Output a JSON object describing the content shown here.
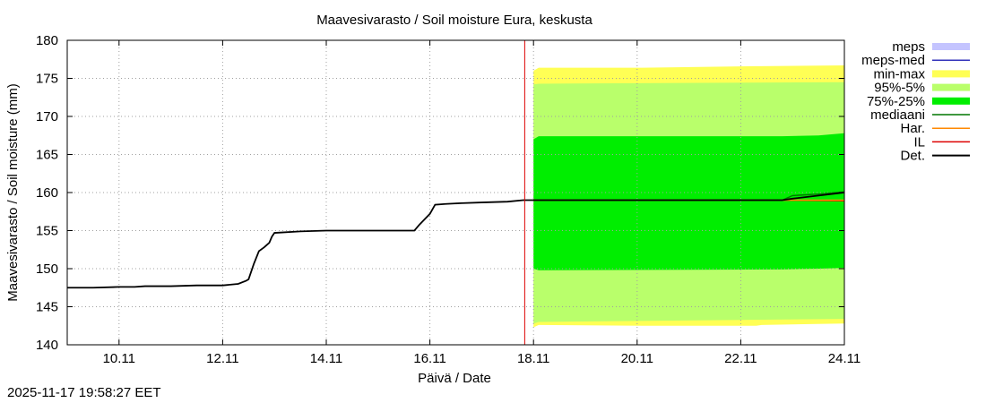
{
  "chart_data": {
    "type": "area",
    "title": "Maavesivarasto / Soil moisture   Eura, keskusta",
    "xlabel": "Päivä / Date",
    "ylabel": "Maavesivarasto / Soil moisture (mm)",
    "ylim": [
      140,
      180
    ],
    "xlim_days": [
      9.0,
      24.0
    ],
    "y_ticks": [
      140,
      145,
      150,
      155,
      160,
      165,
      170,
      175,
      180
    ],
    "x_ticks": [
      {
        "day": 10,
        "label": "10.11"
      },
      {
        "day": 12,
        "label": "12.11"
      },
      {
        "day": 14,
        "label": "14.11"
      },
      {
        "day": 16,
        "label": "16.11"
      },
      {
        "day": 18,
        "label": "18.11"
      },
      {
        "day": 20,
        "label": "20.11"
      },
      {
        "day": 22,
        "label": "22.11"
      },
      {
        "day": 24,
        "label": "24.11"
      }
    ],
    "grid": true,
    "legend_position": "right",
    "legend": [
      {
        "key": "meps",
        "label": "meps",
        "color": "#c4c4ff",
        "kind": "band"
      },
      {
        "key": "meps-med",
        "label": "meps-med",
        "color": "#3333bb",
        "kind": "line"
      },
      {
        "key": "min-max",
        "label": "min-max",
        "color": "#ffff55",
        "kind": "band"
      },
      {
        "key": "p95-5",
        "label": "95%-5%",
        "color": "#b9ff6b",
        "kind": "band"
      },
      {
        "key": "p75-25",
        "label": "75%-25%",
        "color": "#00ee00",
        "kind": "band"
      },
      {
        "key": "mediaani",
        "label": "mediaani",
        "color": "#007700",
        "kind": "line"
      },
      {
        "key": "har",
        "label": "Har.",
        "color": "#ff8800",
        "kind": "line"
      },
      {
        "key": "il",
        "label": "IL",
        "color": "#dd0000",
        "kind": "line"
      },
      {
        "key": "det",
        "label": "Det.",
        "color": "#000000",
        "kind": "line"
      }
    ],
    "forecast_start_day": 17.83,
    "bands": {
      "min-max": {
        "x": [
          18.0,
          18.1,
          20.1,
          22.3,
          22.4,
          24.0
        ],
        "low": [
          142.3,
          142.6,
          142.5,
          142.5,
          142.6,
          142.8
        ],
        "high": [
          176.0,
          176.4,
          176.4,
          176.6,
          176.6,
          176.7
        ]
      },
      "p95-5": {
        "x": [
          18.0,
          18.1,
          24.0
        ],
        "low": [
          142.8,
          143.0,
          143.4
        ],
        "high": [
          174.2,
          174.3,
          174.5
        ]
      },
      "p75-25": {
        "x": [
          18.0,
          18.1,
          22.8,
          23.5,
          24.0
        ],
        "low": [
          150.0,
          149.8,
          149.9,
          150.0,
          150.1
        ],
        "high": [
          167.0,
          167.4,
          167.4,
          167.5,
          167.8
        ]
      }
    },
    "series": [
      {
        "name": "Det.",
        "x": [
          9.0,
          9.5,
          10.0,
          10.3,
          10.5,
          11.0,
          11.5,
          12.0,
          12.3,
          12.45,
          12.5,
          12.6,
          12.7,
          12.8,
          12.9,
          12.95,
          13.0,
          13.5,
          14.0,
          15.0,
          15.5,
          15.7,
          15.8,
          16.0,
          16.1,
          16.3,
          16.6,
          17.0,
          17.5,
          17.8,
          18.0,
          19.0,
          20.0,
          21.0,
          22.0,
          22.5,
          22.8,
          23.0,
          23.5,
          24.0
        ],
        "values": [
          147.5,
          147.5,
          147.6,
          147.6,
          147.7,
          147.7,
          147.8,
          147.8,
          148.0,
          148.4,
          148.6,
          150.6,
          152.3,
          152.8,
          153.4,
          154.2,
          154.7,
          154.9,
          155.0,
          155.0,
          155.0,
          155.0,
          155.8,
          157.2,
          158.4,
          158.5,
          158.6,
          158.7,
          158.8,
          159.0,
          159.0,
          159.0,
          159.0,
          159.0,
          159.0,
          159.0,
          159.0,
          159.2,
          159.6,
          160.0
        ]
      },
      {
        "name": "mediaani",
        "x": [
          18.0,
          22.8,
          23.0,
          23.5,
          24.0
        ],
        "values": [
          159.0,
          159.0,
          159.6,
          159.8,
          160.1
        ]
      },
      {
        "name": "Har.",
        "x": [
          18.0,
          22.8,
          24.0
        ],
        "values": [
          159.0,
          159.0,
          159.0
        ]
      },
      {
        "name": "IL",
        "x": [
          18.0,
          22.8,
          24.0
        ],
        "values": [
          159.0,
          159.0,
          158.9
        ]
      }
    ]
  },
  "timestamp": "2025-11-17 19:58:27 EET"
}
